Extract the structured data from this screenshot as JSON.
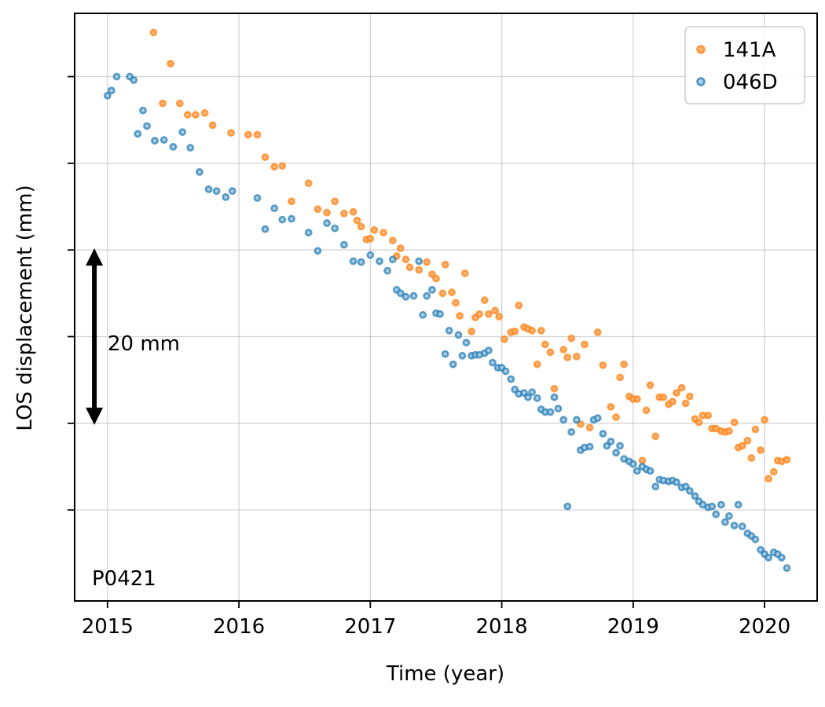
{
  "chart_data": {
    "type": "scatter",
    "xlabel": "Time (year)",
    "ylabel": "LOS displacement (mm)",
    "xlim": [
      2014.75,
      2020.4
    ],
    "ylim": [
      -30.5,
      37.3
    ],
    "xticks": [
      2015,
      2016,
      2017,
      2018,
      2019,
      2020
    ],
    "yticks": [
      -20,
      -10,
      0,
      10,
      20,
      30
    ],
    "grid": true,
    "legend_position": "top-right",
    "colors": {
      "141A": "#ff7f0e",
      "046D": "#1f77b4"
    },
    "annotations": {
      "station": "P0421",
      "scale_label": "20 mm",
      "scale_arrow_mm": [
        -10,
        10
      ],
      "scale_arrow_x": 2014.9
    },
    "series": [
      {
        "name": "141A",
        "color": "#ff7f0e",
        "points": [
          [
            2015.35,
            35.1
          ],
          [
            2015.42,
            26.9
          ],
          [
            2015.48,
            31.5
          ],
          [
            2015.55,
            26.9
          ],
          [
            2015.61,
            25.6
          ],
          [
            2015.67,
            25.6
          ],
          [
            2015.74,
            25.8
          ],
          [
            2015.8,
            24.4
          ],
          [
            2015.94,
            23.5
          ],
          [
            2016.07,
            23.3
          ],
          [
            2016.14,
            23.3
          ],
          [
            2016.2,
            20.7
          ],
          [
            2016.27,
            19.6
          ],
          [
            2016.33,
            19.7
          ],
          [
            2016.4,
            15.6
          ],
          [
            2016.53,
            17.7
          ],
          [
            2016.6,
            14.7
          ],
          [
            2016.67,
            14.3
          ],
          [
            2016.73,
            15.6
          ],
          [
            2016.8,
            14.2
          ],
          [
            2016.87,
            14.4
          ],
          [
            2016.9,
            13.4
          ],
          [
            2016.93,
            12.7
          ],
          [
            2016.97,
            11.2
          ],
          [
            2017.0,
            11.3
          ],
          [
            2017.03,
            12.3
          ],
          [
            2017.1,
            12.0
          ],
          [
            2017.17,
            11.1
          ],
          [
            2017.2,
            9.3
          ],
          [
            2017.23,
            10.2
          ],
          [
            2017.27,
            8.9
          ],
          [
            2017.3,
            8.0
          ],
          [
            2017.37,
            7.7
          ],
          [
            2017.43,
            8.6
          ],
          [
            2017.47,
            7.2
          ],
          [
            2017.5,
            6.7
          ],
          [
            2017.55,
            5.0
          ],
          [
            2017.57,
            8.3
          ],
          [
            2017.62,
            5.1
          ],
          [
            2017.65,
            3.9
          ],
          [
            2017.68,
            2.4
          ],
          [
            2017.72,
            7.3
          ],
          [
            2017.77,
            0.6
          ],
          [
            2017.8,
            2.2
          ],
          [
            2017.83,
            2.6
          ],
          [
            2017.87,
            4.2
          ],
          [
            2017.9,
            2.6
          ],
          [
            2017.95,
            3.0
          ],
          [
            2017.98,
            2.3
          ],
          [
            2018.02,
            -0.3
          ],
          [
            2018.07,
            0.5
          ],
          [
            2018.1,
            0.6
          ],
          [
            2018.13,
            3.6
          ],
          [
            2018.17,
            1.1
          ],
          [
            2018.2,
            0.9
          ],
          [
            2018.23,
            0.7
          ],
          [
            2018.27,
            -3.2
          ],
          [
            2018.3,
            0.7
          ],
          [
            2018.33,
            -0.9
          ],
          [
            2018.37,
            -1.8
          ],
          [
            2018.4,
            -6.0
          ],
          [
            2018.47,
            -1.5
          ],
          [
            2018.5,
            -2.4
          ],
          [
            2018.53,
            -0.2
          ],
          [
            2018.57,
            -2.3
          ],
          [
            2018.6,
            -10.1
          ],
          [
            2018.63,
            -0.9
          ],
          [
            2018.67,
            -10.5
          ],
          [
            2018.73,
            0.5
          ],
          [
            2018.77,
            -3.3
          ],
          [
            2018.83,
            -8.1
          ],
          [
            2018.87,
            -9.3
          ],
          [
            2018.9,
            -4.7
          ],
          [
            2018.93,
            -3.2
          ],
          [
            2018.97,
            -6.9
          ],
          [
            2019.0,
            -7.2
          ],
          [
            2019.03,
            -7.2
          ],
          [
            2019.07,
            -14.3
          ],
          [
            2019.1,
            -8.5
          ],
          [
            2019.13,
            -5.6
          ],
          [
            2019.17,
            -11.5
          ],
          [
            2019.2,
            -7.0
          ],
          [
            2019.23,
            -7.0
          ],
          [
            2019.27,
            -7.8
          ],
          [
            2019.3,
            -7.5
          ],
          [
            2019.33,
            -6.5
          ],
          [
            2019.37,
            -5.9
          ],
          [
            2019.4,
            -7.7
          ],
          [
            2019.43,
            -6.9
          ],
          [
            2019.47,
            -9.5
          ],
          [
            2019.5,
            -9.9
          ],
          [
            2019.53,
            -9.1
          ],
          [
            2019.57,
            -9.1
          ],
          [
            2019.6,
            -10.6
          ],
          [
            2019.63,
            -10.6
          ],
          [
            2019.67,
            -10.9
          ],
          [
            2019.7,
            -11.0
          ],
          [
            2019.73,
            -10.9
          ],
          [
            2019.77,
            -9.9
          ],
          [
            2019.8,
            -12.8
          ],
          [
            2019.83,
            -12.6
          ],
          [
            2019.87,
            -12.0
          ],
          [
            2019.9,
            -14.0
          ],
          [
            2019.93,
            -10.7
          ],
          [
            2019.97,
            -13.1
          ],
          [
            2020.0,
            -9.6
          ],
          [
            2020.03,
            -16.4
          ],
          [
            2020.07,
            -15.6
          ],
          [
            2020.1,
            -14.3
          ],
          [
            2020.13,
            -14.4
          ],
          [
            2020.17,
            -14.2
          ]
        ]
      },
      {
        "name": "046D",
        "color": "#1f77b4",
        "points": [
          [
            2015.0,
            27.8
          ],
          [
            2015.03,
            28.4
          ],
          [
            2015.07,
            30.0
          ],
          [
            2015.17,
            30.0
          ],
          [
            2015.2,
            29.6
          ],
          [
            2015.23,
            23.4
          ],
          [
            2015.27,
            26.1
          ],
          [
            2015.3,
            24.3
          ],
          [
            2015.36,
            22.6
          ],
          [
            2015.43,
            22.7
          ],
          [
            2015.5,
            21.9
          ],
          [
            2015.57,
            23.6
          ],
          [
            2015.63,
            21.8
          ],
          [
            2015.7,
            19.0
          ],
          [
            2015.77,
            17.0
          ],
          [
            2015.83,
            16.8
          ],
          [
            2015.9,
            16.1
          ],
          [
            2015.95,
            16.8
          ],
          [
            2016.14,
            16.0
          ],
          [
            2016.2,
            12.4
          ],
          [
            2016.27,
            14.8
          ],
          [
            2016.33,
            13.5
          ],
          [
            2016.4,
            13.6
          ],
          [
            2016.53,
            12.0
          ],
          [
            2016.6,
            9.9
          ],
          [
            2016.67,
            13.1
          ],
          [
            2016.73,
            12.5
          ],
          [
            2016.8,
            10.6
          ],
          [
            2016.87,
            8.7
          ],
          [
            2016.93,
            8.6
          ],
          [
            2017.0,
            9.4
          ],
          [
            2017.07,
            8.7
          ],
          [
            2017.13,
            7.6
          ],
          [
            2017.17,
            8.9
          ],
          [
            2017.2,
            5.4
          ],
          [
            2017.23,
            5.0
          ],
          [
            2017.27,
            4.6
          ],
          [
            2017.33,
            4.7
          ],
          [
            2017.37,
            8.7
          ],
          [
            2017.4,
            2.5
          ],
          [
            2017.43,
            4.7
          ],
          [
            2017.47,
            5.4
          ],
          [
            2017.5,
            2.7
          ],
          [
            2017.53,
            2.6
          ],
          [
            2017.57,
            -2.0
          ],
          [
            2017.6,
            0.7
          ],
          [
            2017.63,
            -3.2
          ],
          [
            2017.67,
            0.2
          ],
          [
            2017.7,
            -2.2
          ],
          [
            2017.73,
            -0.7
          ],
          [
            2017.77,
            -2.2
          ],
          [
            2017.8,
            -2.1
          ],
          [
            2017.83,
            -2.1
          ],
          [
            2017.87,
            -1.9
          ],
          [
            2017.9,
            -1.6
          ],
          [
            2017.93,
            -3.0
          ],
          [
            2017.97,
            -3.6
          ],
          [
            2018.0,
            -3.6
          ],
          [
            2018.03,
            -4.0
          ],
          [
            2018.07,
            -4.9
          ],
          [
            2018.1,
            -6.1
          ],
          [
            2018.13,
            -6.6
          ],
          [
            2018.17,
            -6.5
          ],
          [
            2018.2,
            -7.0
          ],
          [
            2018.23,
            -6.4
          ],
          [
            2018.27,
            -7.1
          ],
          [
            2018.3,
            -8.4
          ],
          [
            2018.33,
            -8.7
          ],
          [
            2018.37,
            -8.7
          ],
          [
            2018.4,
            -7.0
          ],
          [
            2018.43,
            -8.3
          ],
          [
            2018.47,
            -9.6
          ],
          [
            2018.5,
            -19.6
          ],
          [
            2018.53,
            -11.0
          ],
          [
            2018.57,
            -9.6
          ],
          [
            2018.6,
            -13.1
          ],
          [
            2018.63,
            -12.8
          ],
          [
            2018.67,
            -12.7
          ],
          [
            2018.7,
            -9.6
          ],
          [
            2018.73,
            -9.4
          ],
          [
            2018.77,
            -11.2
          ],
          [
            2018.8,
            -12.6
          ],
          [
            2018.83,
            -12.1
          ],
          [
            2018.87,
            -13.4
          ],
          [
            2018.9,
            -12.6
          ],
          [
            2018.93,
            -14.1
          ],
          [
            2018.97,
            -14.4
          ],
          [
            2019.0,
            -14.7
          ],
          [
            2019.03,
            -15.5
          ],
          [
            2019.07,
            -15.0
          ],
          [
            2019.1,
            -15.3
          ],
          [
            2019.13,
            -15.5
          ],
          [
            2019.17,
            -17.3
          ],
          [
            2019.2,
            -16.5
          ],
          [
            2019.23,
            -16.6
          ],
          [
            2019.27,
            -16.7
          ],
          [
            2019.3,
            -16.6
          ],
          [
            2019.33,
            -16.8
          ],
          [
            2019.37,
            -17.4
          ],
          [
            2019.4,
            -17.3
          ],
          [
            2019.43,
            -17.8
          ],
          [
            2019.47,
            -18.4
          ],
          [
            2019.5,
            -19.0
          ],
          [
            2019.53,
            -19.4
          ],
          [
            2019.57,
            -19.7
          ],
          [
            2019.6,
            -19.6
          ],
          [
            2019.63,
            -20.5
          ],
          [
            2019.67,
            -19.4
          ],
          [
            2019.7,
            -21.4
          ],
          [
            2019.73,
            -20.7
          ],
          [
            2019.77,
            -21.8
          ],
          [
            2019.8,
            -19.4
          ],
          [
            2019.83,
            -21.9
          ],
          [
            2019.87,
            -22.7
          ],
          [
            2019.9,
            -23.0
          ],
          [
            2019.93,
            -23.4
          ],
          [
            2019.97,
            -24.6
          ],
          [
            2020.0,
            -25.1
          ],
          [
            2020.03,
            -25.5
          ],
          [
            2020.07,
            -24.9
          ],
          [
            2020.1,
            -25.1
          ],
          [
            2020.13,
            -25.5
          ],
          [
            2020.17,
            -26.7
          ]
        ]
      }
    ]
  }
}
